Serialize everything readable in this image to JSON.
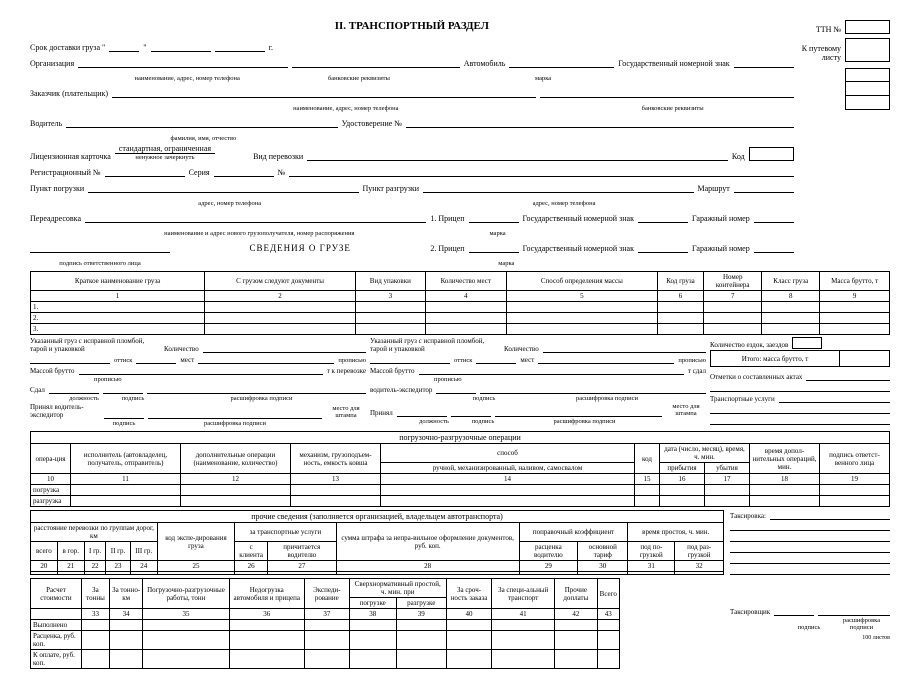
{
  "title": "II. ТРАНСПОРТНЫЙ РАЗДЕЛ",
  "ttn": "ТТН №",
  "kputevomu": "К путевому",
  "listu": "листу",
  "fields": {
    "srok": "Срок доставки груза \"",
    "g": "г.",
    "org": "Организация",
    "org_sub": "наименование, адрес, номер телефона",
    "bank_sub": "банковские реквизиты",
    "avto": "Автомобиль",
    "marka_sub": "марка",
    "gosnomer": "Государственный номерной знак",
    "zakazchik": "Заказчик (плательщик)",
    "zak_sub": "наименование, адрес, номер телефона",
    "voditel": "Водитель",
    "fio_sub": "фамилия, имя, отчество",
    "udost": "Удостоверение №",
    "lic": "Лицензионная карточка",
    "lic_opt": "стандартная, ограниченная",
    "lic_sub": "ненужное зачеркнуть",
    "vid": "Вид перевозки",
    "kod": "Код",
    "regnom": "Регистрационный №",
    "seria": "Серия",
    "nom": "№",
    "pogruz": "Пункт погрузки",
    "adres_sub": "адрес, номер телефона",
    "razgruz": "Пункт разгрузки",
    "marshrut": "Маршрут",
    "pereadr": "Переадресовка",
    "pereadr_sub": "наименование и адрес нового грузополучателя,  номер распоряжения",
    "pricep1": "1. Прицеп",
    "pricep2": "2. Прицеп",
    "garazh": "Гаражный номер",
    "podpis_otv": "подпись ответственного лица"
  },
  "svedenia": "СВЕДЕНИЯ О ГРУЗЕ",
  "cargo_headers": [
    "Краткое наименование груза",
    "С грузом следуют документы",
    "Вид упаковки",
    "Количество мест",
    "Способ определения массы",
    "Код груза",
    "Номер контейнера",
    "Класс груза",
    "Масса брутто, т"
  ],
  "cargo_nums": [
    "1",
    "2",
    "3",
    "4",
    "5",
    "6",
    "7",
    "8",
    "9"
  ],
  "cargo_rows": [
    "1.",
    "2.",
    "3."
  ],
  "below": {
    "ukaz1": "Указанный груз с исправной пломбой, тарой и упаковкой",
    "kol": "Количество",
    "mest": "мест",
    "ottisk": "оттиск",
    "prop": "прописью",
    "massoy": "Массой брутто",
    "t": "т  к перевозке",
    "sdal": "Сдал",
    "dolzh": "должность",
    "podp": "подпись",
    "rasshif": "расшифровка подписи",
    "prinyal_v": "Принял водитель-экспедитор",
    "mesto": "место для штампа",
    "ukaz2": "Указанный груз с исправной пломбой, тарой и упаковкой",
    "t_sdal": "т    сдал",
    "vod_eksp": "водитель-экспедитор",
    "prinyal": "Принял",
    "kol_ezd": "Количество ездок, заездов",
    "itogo": "Итого: масса брутто, т",
    "otmetki": "Отметки о составленных актах",
    "transp_usl": "Транспортные услуги"
  },
  "pogr_title": "погрузочно-разгрузочные операции",
  "pogr_h1": [
    "опера-ция",
    "исполнитель (автовладелец, получатель, отправитель)",
    "дополнительные операции (наименование, количество)",
    "механизм, грузоподъем-ность, емкость ковша",
    "способ",
    "код",
    "дата (число, месяц), время, ч. мин.",
    "время допол-нительных операций, мин.",
    "подпись ответст-венного лица"
  ],
  "pogr_h2_sposob": "ручной, механизированный, наливом, самосвалом",
  "pogr_h2_date": [
    "прибытия",
    "убытия"
  ],
  "pogr_nums": [
    "10",
    "11",
    "12",
    "13",
    "14",
    "15",
    "16",
    "17",
    "18",
    "19"
  ],
  "pogr_rows": [
    "погрузка",
    "разгрузка"
  ],
  "prochie_title": "прочие сведения",
  "prochie_sub": "(заполняется организацией, владельцем автотранспорта)",
  "prochie_h1": {
    "rast": "расстояние перевозки по группам дорог, км",
    "kod_eksp": "код экспе-дирования груза",
    "za_transp": "за транспортные услуги",
    "summa": "сумма штрафа за непра-вильное оформление документов, руб. коп.",
    "poprav": "поправочный коэффициент",
    "vremya": "время простоя, ч. мин."
  },
  "prochie_h2": {
    "rast": [
      "всего",
      "в гор.",
      "I гр.",
      "II гр.",
      "III гр."
    ],
    "za_transp": [
      "с клиента",
      "причитается водителю"
    ],
    "poprav": [
      "расценка водителю",
      "основной тариф"
    ],
    "vremya": [
      "под по-грузкой",
      "под раз-грузкой"
    ]
  },
  "prochie_nums": [
    "20",
    "21",
    "22",
    "23",
    "24",
    "25",
    "26",
    "27",
    "28",
    "29",
    "30",
    "31",
    "32"
  ],
  "taksirovka": "Таксировка:",
  "raschet_h": [
    "Расчет стоимости",
    "За тонны",
    "За тонно-км",
    "Погрузочно-разгрузочные работы, тонн",
    "Недогрузка автомобиля и прицепа",
    "Экспеди-рование",
    "Сверхнормативный простой, ч. мин. при",
    "За сроч-ность заказа",
    "За специ-альный транспорт",
    "Прочие доплаты",
    "Всего"
  ],
  "raschet_h2": [
    "погрузке",
    "разгрузке"
  ],
  "raschet_nums": [
    "33",
    "34",
    "35",
    "36",
    "37",
    "38",
    "39",
    "40",
    "41",
    "42",
    "43"
  ],
  "raschet_rows": [
    "Выполнено",
    "Расценка, руб. коп.",
    "К оплате, руб. коп."
  ],
  "taksir": "Таксировщик",
  "listov": "100 листов"
}
